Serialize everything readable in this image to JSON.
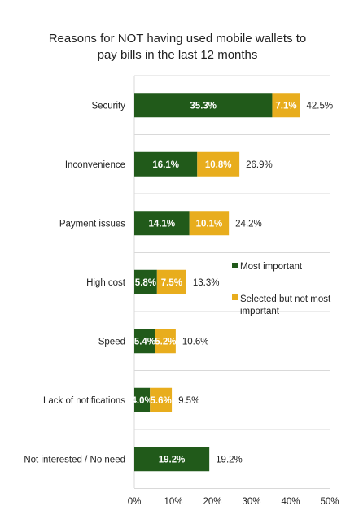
{
  "chart_data": {
    "type": "bar",
    "orientation": "horizontal",
    "stacked": true,
    "title": [
      "Reasons for NOT having used mobile wallets to",
      "pay bills in the last 12 months"
    ],
    "categories": [
      "Security",
      "Inconvenience",
      "Payment issues",
      "High cost",
      "Speed",
      "Lack of notifications",
      "Not interested / No need"
    ],
    "series": [
      {
        "name": "Most important",
        "color": "#215a1a",
        "values": [
          35.3,
          16.1,
          14.1,
          5.8,
          5.4,
          4.0,
          19.2
        ],
        "labels": [
          "35.3%",
          "16.1%",
          "14.1%",
          "5.8%",
          "5.4%",
          "4.0%",
          "19.2%"
        ]
      },
      {
        "name": "Selected but not most important",
        "color": "#e8ad1d",
        "values": [
          7.1,
          10.8,
          10.1,
          7.5,
          5.2,
          5.6,
          0
        ],
        "labels": [
          "7.1%",
          "10.8%",
          "10.1%",
          "7.5%",
          "5.2%",
          "5.6%",
          ""
        ]
      }
    ],
    "totals": [
      "42.5%",
      "26.9%",
      "24.2%",
      "13.3%",
      "10.6%",
      "9.5%",
      "19.2%"
    ],
    "xlim": [
      0,
      50
    ],
    "xticks": [
      "0%",
      "10%",
      "20%",
      "30%",
      "40%",
      "50%"
    ],
    "grid": true,
    "legend_position": "right",
    "legend": {
      "most_important": "Most important",
      "selected_line1": "Selected but not most",
      "selected_line2": "important"
    }
  }
}
